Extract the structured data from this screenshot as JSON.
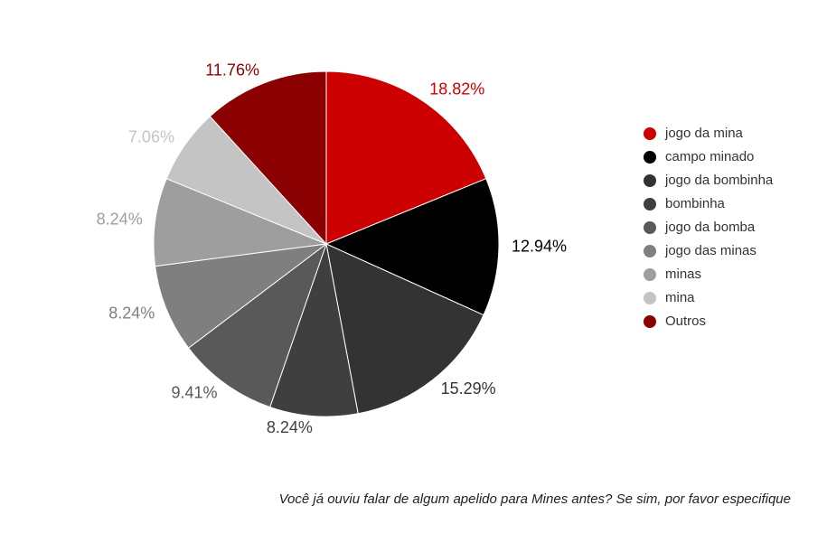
{
  "chart_data": {
    "type": "pie",
    "title": "Você já ouviu falar de algum apelido para Mines antes?  Se sim, por favor especifique",
    "categories": [
      "jogo da mina",
      "campo minado",
      "jogo da bombinha",
      "bombinha",
      "jogo da bomba",
      "jogo das minas",
      "minas",
      "mina",
      "Outros"
    ],
    "values": [
      18.82,
      12.94,
      15.29,
      8.24,
      9.41,
      8.24,
      8.24,
      7.06,
      11.76
    ],
    "value_labels": [
      "18.82%",
      "12.94%",
      "15.29%",
      "8.24%",
      "9.41%",
      "8.24%",
      "8.24%",
      "7.06%",
      "11.76%"
    ],
    "colors": [
      "#cc0000",
      "#000000",
      "#333333",
      "#3f3f3f",
      "#595959",
      "#7f7f7f",
      "#9e9e9e",
      "#c4c4c4",
      "#8b0000"
    ]
  }
}
